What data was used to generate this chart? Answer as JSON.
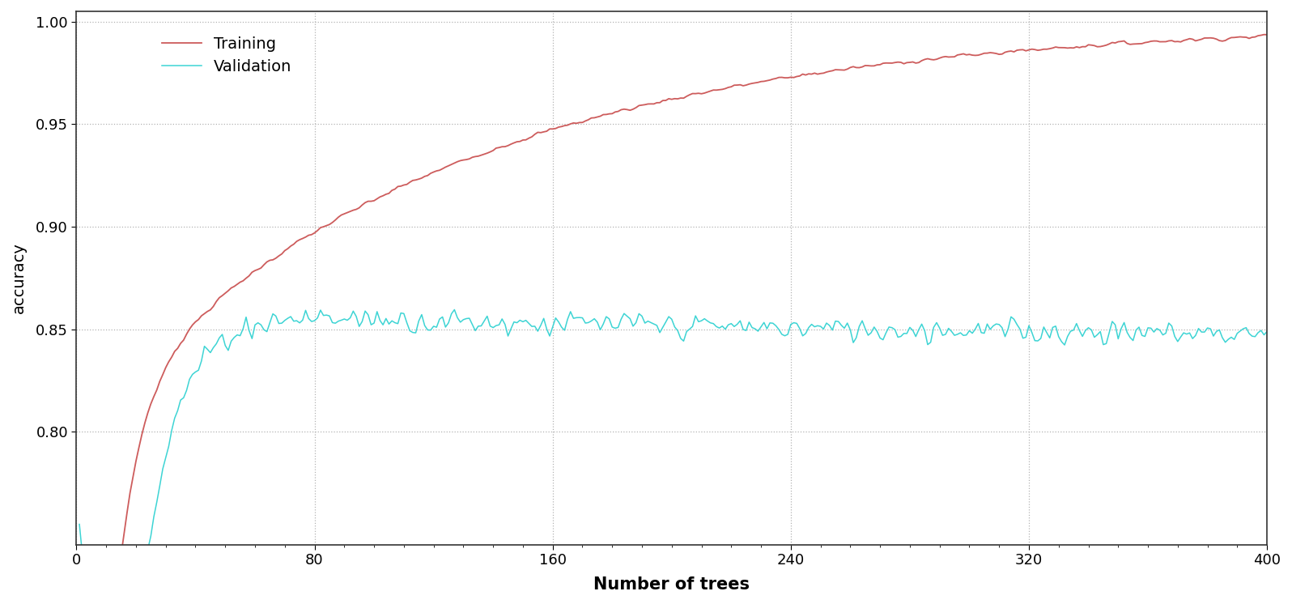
{
  "title": "",
  "xlabel": "Number of trees",
  "ylabel": "accuracy",
  "xlim": [
    0,
    400
  ],
  "ylim": [
    0.745,
    1.005
  ],
  "yticks": [
    0.8,
    0.85,
    0.9,
    0.95,
    1.0
  ],
  "xticks": [
    0,
    80,
    160,
    240,
    320,
    400
  ],
  "training_color": "#cd5c5c",
  "validation_color": "#3dd4d4",
  "background_color": "#ffffff",
  "legend_labels": [
    "Training",
    "Validation"
  ],
  "n_trees": 400,
  "seed": 7
}
